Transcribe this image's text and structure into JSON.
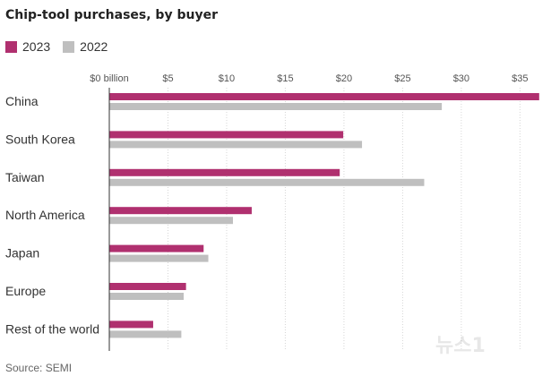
{
  "chart_data": {
    "type": "bar",
    "orientation": "horizontal",
    "title": "Chip-tool purchases, by buyer",
    "categories": [
      "China",
      "South Korea",
      "Taiwan",
      "North America",
      "Japan",
      "Europe",
      "Rest of the world"
    ],
    "series": [
      {
        "name": "2023",
        "color": "#b0306f",
        "values": [
          36.6,
          19.9,
          19.6,
          12.1,
          8.0,
          6.5,
          3.7
        ]
      },
      {
        "name": "2022",
        "color": "#bfbfbf",
        "values": [
          28.3,
          21.5,
          26.8,
          10.5,
          8.4,
          6.3,
          6.1
        ]
      }
    ],
    "xlim": [
      0,
      36.5
    ],
    "xticks": [
      0,
      5,
      10,
      15,
      20,
      25,
      30,
      35
    ],
    "xtick_labels": [
      "$0 billion",
      "$5",
      "$10",
      "$15",
      "$20",
      "$25",
      "$30",
      "$35"
    ],
    "xlabel": "",
    "ylabel": "",
    "grid": true,
    "legend_position": "top-left"
  },
  "source": "Source: SEMI",
  "watermark": "뉴스1"
}
